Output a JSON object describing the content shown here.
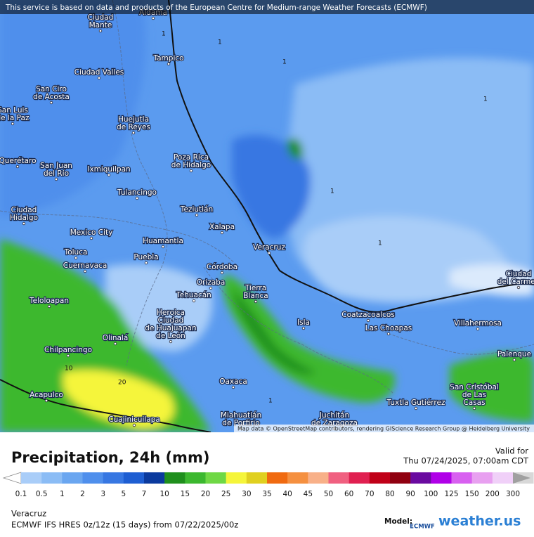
{
  "banner": "This service is based on data and products of the European Centre for Medium-range Weather Forecasts (ECMWF)",
  "map": {
    "cities": [
      {
        "lines": [
          "Aldama"
        ]
      },
      {
        "lines": [
          "Ciudad",
          "Mante"
        ]
      },
      {
        "lines": [
          "Tampico"
        ]
      },
      {
        "lines": [
          "Ciudad Valles"
        ]
      },
      {
        "lines": [
          "San Ciro",
          "de Acosta"
        ]
      },
      {
        "lines": [
          "San Luis",
          "de la Paz"
        ]
      },
      {
        "lines": [
          "Huejutla",
          "de Reyes"
        ]
      },
      {
        "lines": [
          "Poza Rica",
          "de Hidalgo"
        ]
      },
      {
        "lines": [
          "Querétaro"
        ]
      },
      {
        "lines": [
          "San Juan",
          "del Río"
        ]
      },
      {
        "lines": [
          "Ixmiquilpan"
        ]
      },
      {
        "lines": [
          "Tulancingo"
        ]
      },
      {
        "lines": [
          "Teziutlán"
        ]
      },
      {
        "lines": [
          "Ciudad",
          "Hidalgo"
        ]
      },
      {
        "lines": [
          "Xalapa"
        ]
      },
      {
        "lines": [
          "Mexico City"
        ]
      },
      {
        "lines": [
          "Huamantla"
        ]
      },
      {
        "lines": [
          "Veracruz"
        ]
      },
      {
        "lines": [
          "Toluca"
        ]
      },
      {
        "lines": [
          "Puebla"
        ]
      },
      {
        "lines": [
          "Cuernavaca"
        ]
      },
      {
        "lines": [
          "Córdoba"
        ]
      },
      {
        "lines": [
          "Orizaba"
        ]
      },
      {
        "lines": [
          "Tierra",
          "Blanca"
        ]
      },
      {
        "lines": [
          "Tehuacán"
        ]
      },
      {
        "lines": [
          "Teloloapan"
        ]
      },
      {
        "lines": [
          "Heroica",
          "Ciudad",
          "de Huajuapan",
          "de León"
        ]
      },
      {
        "lines": [
          "Coatzacoalcos"
        ]
      },
      {
        "lines": [
          "Isla"
        ]
      },
      {
        "lines": [
          "Villahermosa"
        ]
      },
      {
        "lines": [
          "Las Choapas"
        ]
      },
      {
        "lines": [
          "Olinalá"
        ]
      },
      {
        "lines": [
          "Chilpancingo"
        ]
      },
      {
        "lines": [
          "Palenque"
        ]
      },
      {
        "lines": [
          "Oaxaca"
        ]
      },
      {
        "lines": [
          "San Cristóbal",
          "de Las",
          "Casas"
        ]
      },
      {
        "lines": [
          "Acapulco"
        ]
      },
      {
        "lines": [
          "Tuxtla Gutiérrez"
        ]
      },
      {
        "lines": [
          "Cuajinicuilapa"
        ]
      },
      {
        "lines": [
          "Miahuatlán",
          "de Porfirio"
        ]
      },
      {
        "lines": [
          "Juchitán",
          "de Zaragoza"
        ]
      },
      {
        "lines": [
          "Ciudad",
          "del Carmen"
        ]
      }
    ],
    "contour_labels": [
      1,
      1,
      1,
      1,
      1,
      1,
      10,
      20,
      1
    ],
    "attribution": "Map data © OpenStreetMap contributors, rendering GIScience Research Group @ Heidelberg University"
  },
  "footer": {
    "title": "Precipitation, 24h (mm)",
    "valid_label": "Valid for",
    "valid_time": "Thu 07/24/2025, 07:00am CDT",
    "legend": {
      "labels": [
        0.1,
        0.5,
        1,
        2,
        3,
        5,
        7,
        10,
        15,
        20,
        25,
        30,
        35,
        40,
        45,
        50,
        60,
        70,
        80,
        90,
        100,
        125,
        150,
        200,
        300
      ],
      "colors": [
        "#a9cdf8",
        "#8bbcf5",
        "#6aa6f0",
        "#4f8fec",
        "#3777e2",
        "#1e5ed2",
        "#0b3a9e",
        "#1f8f1d",
        "#3cb82f",
        "#6fd845",
        "#f5f53a",
        "#e0d020",
        "#f06a10",
        "#f59040",
        "#f8b088",
        "#f06080",
        "#e02050",
        "#c00018",
        "#900010",
        "#6a0aa0",
        "#b000e8",
        "#d860f0",
        "#e8a0f0",
        "#f0d0f8",
        "#d8d8d8"
      ]
    },
    "location": "Veracruz",
    "model_run": "ECMWF IFS HRES 0z/12z (15 days) from 07/22/2025/00z",
    "model_label": "Model:",
    "model_logo": "ECMWF",
    "brand": "weather.us"
  }
}
